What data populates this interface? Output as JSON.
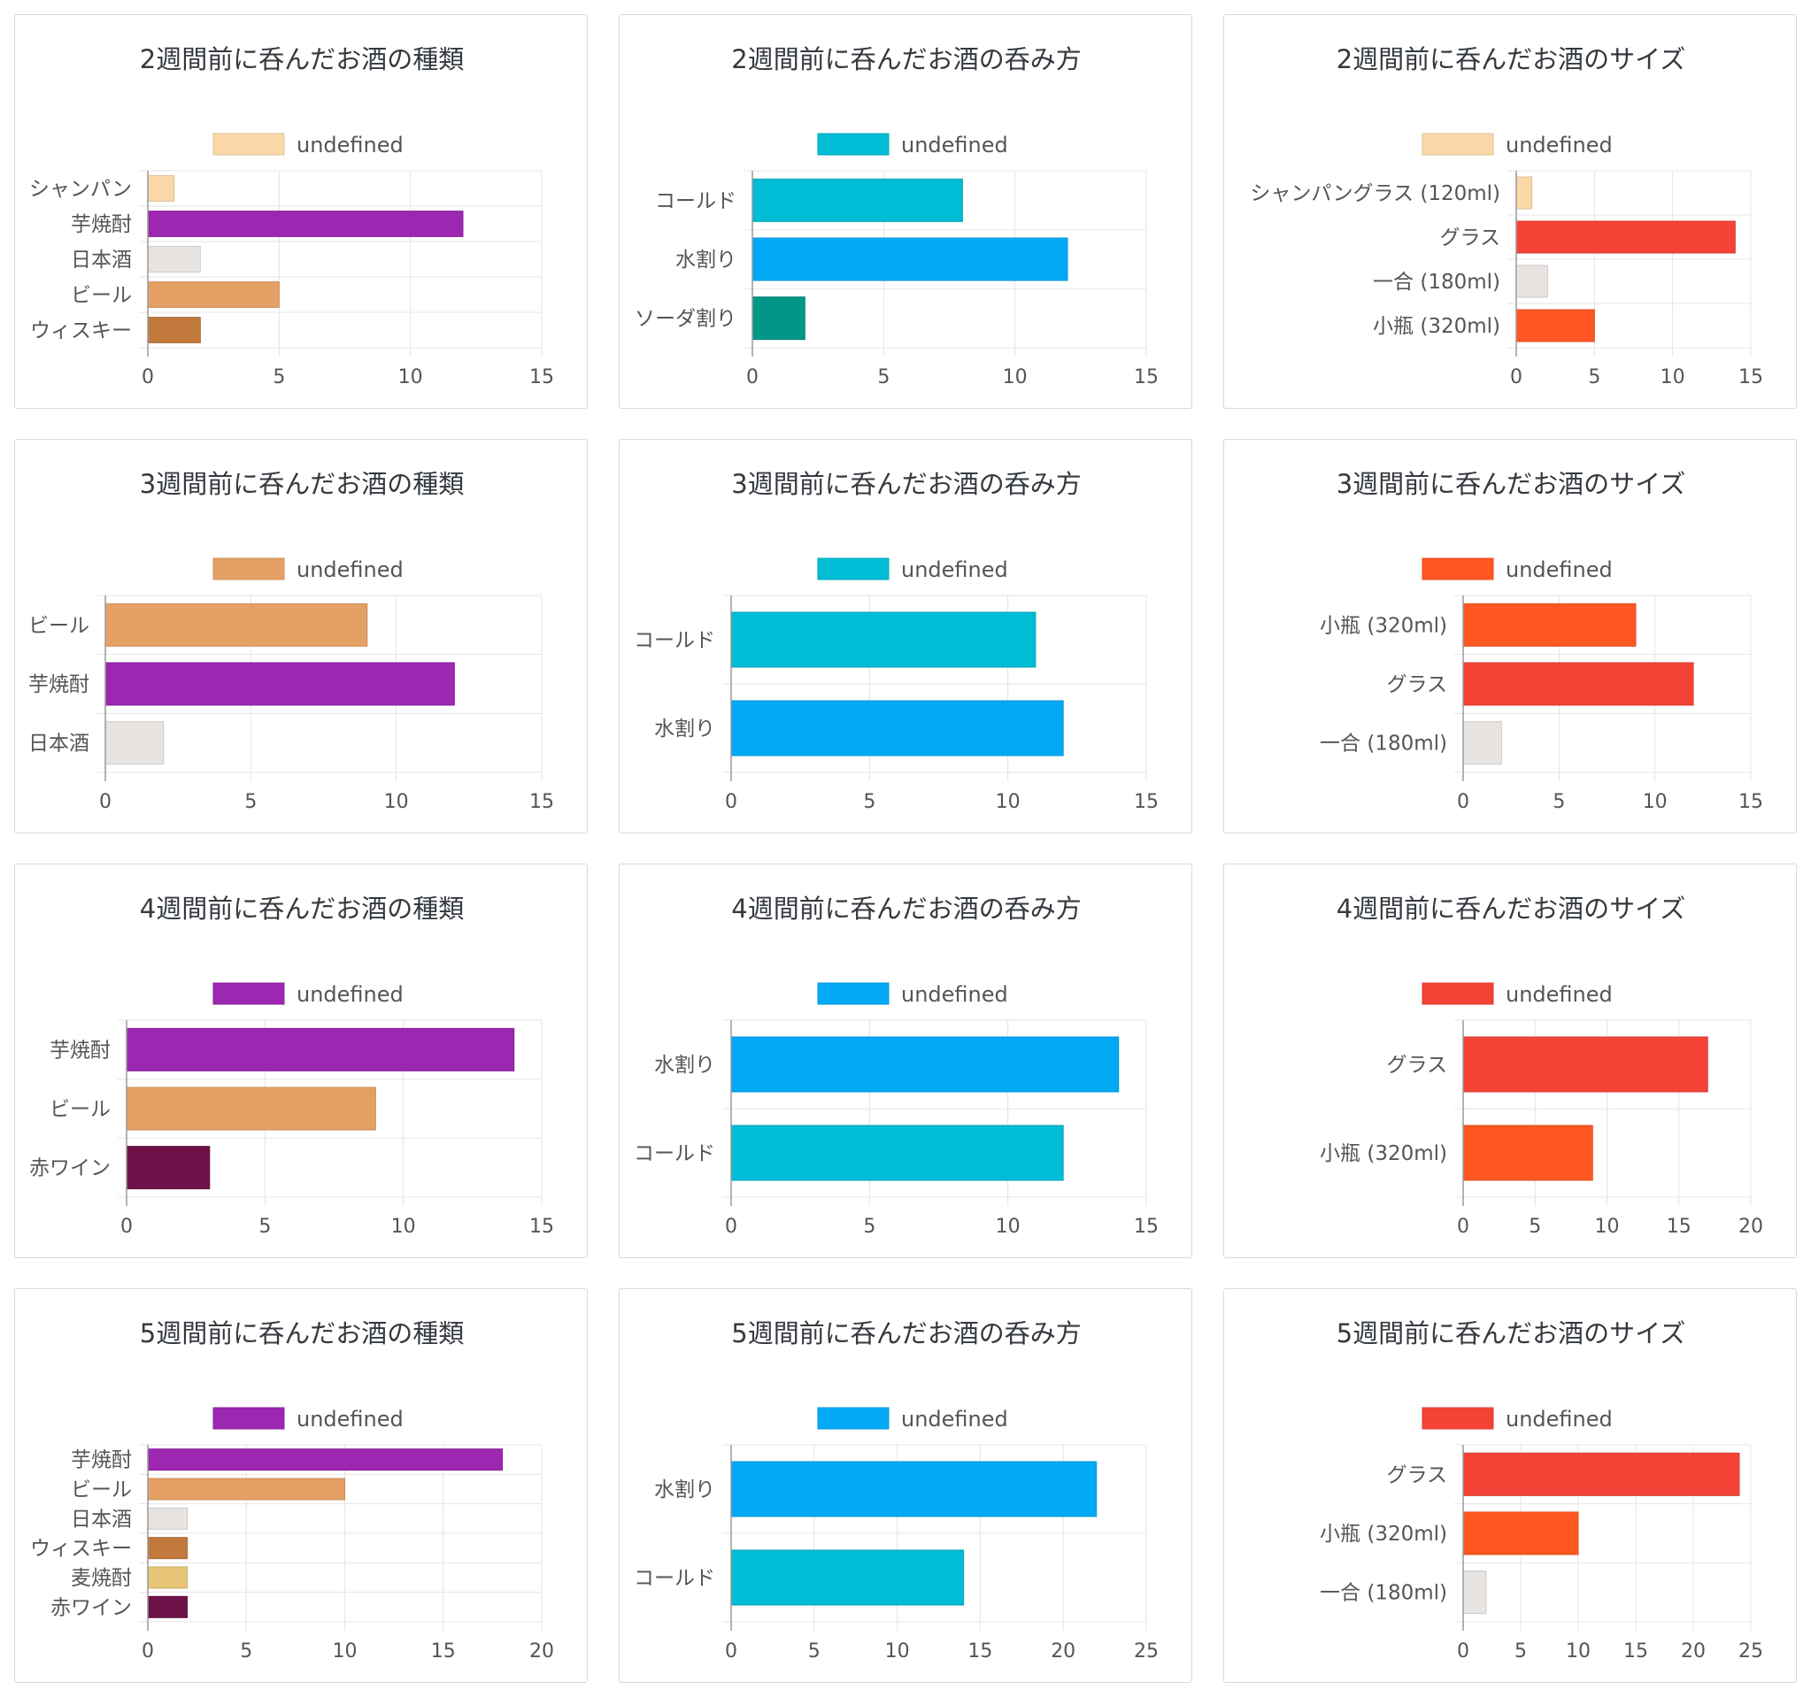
{
  "chart_data": [
    {
      "type": "bar",
      "orientation": "horizontal",
      "title": "2週間前に呑んだお酒の種類",
      "legend": {
        "label": "undefined",
        "position": "top"
      },
      "xlim": [
        0,
        15
      ],
      "ticks": [
        0,
        5,
        10,
        15
      ],
      "grid": true,
      "categories": [
        "シャンパン",
        "芋焼酎",
        "日本酒",
        "ビール",
        "ウィスキー"
      ],
      "values": [
        1,
        12,
        2,
        5,
        2
      ],
      "colors": [
        "#fad8a8",
        "#9c27b0",
        "#e8e4e2",
        "#e5a064",
        "#c17a3c"
      ]
    },
    {
      "type": "bar",
      "orientation": "horizontal",
      "title": "2週間前に呑んだお酒の呑み方",
      "legend": {
        "label": "undefined",
        "position": "top"
      },
      "xlim": [
        0,
        15
      ],
      "ticks": [
        0,
        5,
        10,
        15
      ],
      "grid": true,
      "categories": [
        "コールド",
        "水割り",
        "ソーダ割り"
      ],
      "values": [
        8,
        12,
        2
      ],
      "colors": [
        "#00bcd4",
        "#03a9f4",
        "#009688"
      ]
    },
    {
      "type": "bar",
      "orientation": "horizontal",
      "title": "2週間前に呑んだお酒のサイズ",
      "legend": {
        "label": "undefined",
        "position": "top"
      },
      "xlim": [
        0,
        15
      ],
      "ticks": [
        0,
        5,
        10,
        15
      ],
      "grid": true,
      "categories": [
        "シャンパングラス (120ml)",
        "グラス",
        "一合 (180ml)",
        "小瓶 (320ml)"
      ],
      "values": [
        1,
        14,
        2,
        5
      ],
      "colors": [
        "#fad8a8",
        "#f44336",
        "#e8e4e2",
        "#ff5722"
      ]
    },
    {
      "type": "bar",
      "orientation": "horizontal",
      "title": "3週間前に呑んだお酒の種類",
      "legend": {
        "label": "undefined",
        "position": "top"
      },
      "xlim": [
        0,
        15
      ],
      "ticks": [
        0,
        5,
        10,
        15
      ],
      "grid": true,
      "categories": [
        "ビール",
        "芋焼酎",
        "日本酒"
      ],
      "values": [
        9,
        12,
        2
      ],
      "colors": [
        "#e5a064",
        "#9c27b0",
        "#e8e4e2"
      ]
    },
    {
      "type": "bar",
      "orientation": "horizontal",
      "title": "3週間前に呑んだお酒の呑み方",
      "legend": {
        "label": "undefined",
        "position": "top"
      },
      "xlim": [
        0,
        15
      ],
      "ticks": [
        0,
        5,
        10,
        15
      ],
      "grid": true,
      "categories": [
        "コールド",
        "水割り"
      ],
      "values": [
        11,
        12
      ],
      "colors": [
        "#00bcd4",
        "#03a9f4"
      ]
    },
    {
      "type": "bar",
      "orientation": "horizontal",
      "title": "3週間前に呑んだお酒のサイズ",
      "legend": {
        "label": "undefined",
        "position": "top"
      },
      "xlim": [
        0,
        15
      ],
      "ticks": [
        0,
        5,
        10,
        15
      ],
      "grid": true,
      "categories": [
        "小瓶 (320ml)",
        "グラス",
        "一合 (180ml)"
      ],
      "values": [
        9,
        12,
        2
      ],
      "colors": [
        "#ff5722",
        "#f44336",
        "#e8e4e2"
      ]
    },
    {
      "type": "bar",
      "orientation": "horizontal",
      "title": "4週間前に呑んだお酒の種類",
      "legend": {
        "label": "undefined",
        "position": "top"
      },
      "xlim": [
        0,
        15
      ],
      "ticks": [
        0,
        5,
        10,
        15
      ],
      "grid": true,
      "categories": [
        "芋焼酎",
        "ビール",
        "赤ワイン"
      ],
      "values": [
        14,
        9,
        3
      ],
      "colors": [
        "#9c27b0",
        "#e5a064",
        "#6d1248"
      ]
    },
    {
      "type": "bar",
      "orientation": "horizontal",
      "title": "4週間前に呑んだお酒の呑み方",
      "legend": {
        "label": "undefined",
        "position": "top"
      },
      "xlim": [
        0,
        15
      ],
      "ticks": [
        0,
        5,
        10,
        15
      ],
      "grid": true,
      "categories": [
        "水割り",
        "コールド"
      ],
      "values": [
        14,
        12
      ],
      "colors": [
        "#03a9f4",
        "#00bcd4"
      ]
    },
    {
      "type": "bar",
      "orientation": "horizontal",
      "title": "4週間前に呑んだお酒のサイズ",
      "legend": {
        "label": "undefined",
        "position": "top"
      },
      "xlim": [
        0,
        20
      ],
      "ticks": [
        0,
        5,
        10,
        15,
        20
      ],
      "grid": true,
      "categories": [
        "グラス",
        "小瓶 (320ml)"
      ],
      "values": [
        17,
        9
      ],
      "colors": [
        "#f44336",
        "#ff5722"
      ]
    },
    {
      "type": "bar",
      "orientation": "horizontal",
      "title": "5週間前に呑んだお酒の種類",
      "legend": {
        "label": "undefined",
        "position": "top"
      },
      "xlim": [
        0,
        20
      ],
      "ticks": [
        0,
        5,
        10,
        15,
        20
      ],
      "grid": true,
      "categories": [
        "芋焼酎",
        "ビール",
        "日本酒",
        "ウィスキー",
        "麦焼酎",
        "赤ワイン"
      ],
      "values": [
        18,
        10,
        2,
        2,
        2,
        2
      ],
      "colors": [
        "#9c27b0",
        "#e5a064",
        "#e8e4e2",
        "#c17a3c",
        "#e6c577",
        "#6d1248"
      ]
    },
    {
      "type": "bar",
      "orientation": "horizontal",
      "title": "5週間前に呑んだお酒の呑み方",
      "legend": {
        "label": "undefined",
        "position": "top"
      },
      "xlim": [
        0,
        25
      ],
      "ticks": [
        0,
        5,
        10,
        15,
        20,
        25
      ],
      "grid": true,
      "categories": [
        "水割り",
        "コールド"
      ],
      "values": [
        22,
        14
      ],
      "colors": [
        "#03a9f4",
        "#00bcd4"
      ]
    },
    {
      "type": "bar",
      "orientation": "horizontal",
      "title": "5週間前に呑んだお酒のサイズ",
      "legend": {
        "label": "undefined",
        "position": "top"
      },
      "xlim": [
        0,
        25
      ],
      "ticks": [
        0,
        5,
        10,
        15,
        20,
        25
      ],
      "grid": true,
      "categories": [
        "グラス",
        "小瓶 (320ml)",
        "一合 (180ml)"
      ],
      "values": [
        24,
        10,
        2
      ],
      "colors": [
        "#f44336",
        "#ff5722",
        "#e8e4e2"
      ]
    }
  ]
}
